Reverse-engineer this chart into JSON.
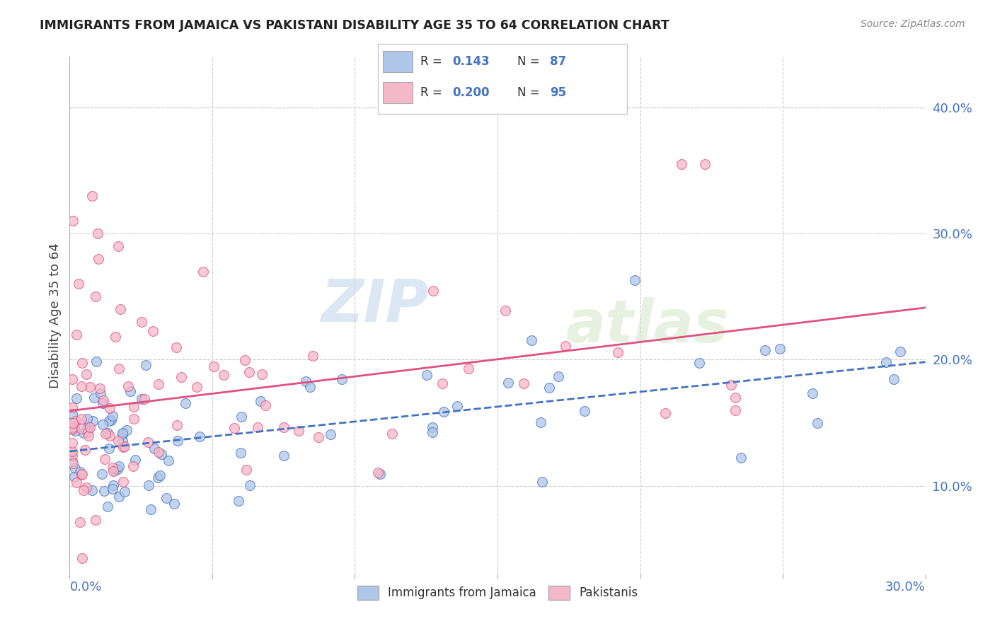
{
  "title": "IMMIGRANTS FROM JAMAICA VS PAKISTANI DISABILITY AGE 35 TO 64 CORRELATION CHART",
  "source": "Source: ZipAtlas.com",
  "ylabel": "Disability Age 35 to 64",
  "right_ytick_vals": [
    0.1,
    0.2,
    0.3,
    0.4
  ],
  "xlim": [
    0.0,
    0.3
  ],
  "ylim": [
    0.03,
    0.44
  ],
  "jamaica_R": 0.143,
  "jamaica_N": 87,
  "pakistan_R": 0.2,
  "pakistan_N": 95,
  "jamaica_color": "#aec6e8",
  "pakistan_color": "#f4b8c8",
  "jamaica_line_color": "#4472c4",
  "pakistan_line_color": "#e05080",
  "legend_jamaica": "Immigrants from Jamaica",
  "legend_pakistan": "Pakistanis",
  "watermark_zip": "ZIP",
  "watermark_atlas": "atlas",
  "background_color": "#ffffff",
  "grid_color": "#cccccc",
  "title_color": "#222222",
  "axis_label_color": "#4472c4",
  "right_axis_color": "#4472c4"
}
